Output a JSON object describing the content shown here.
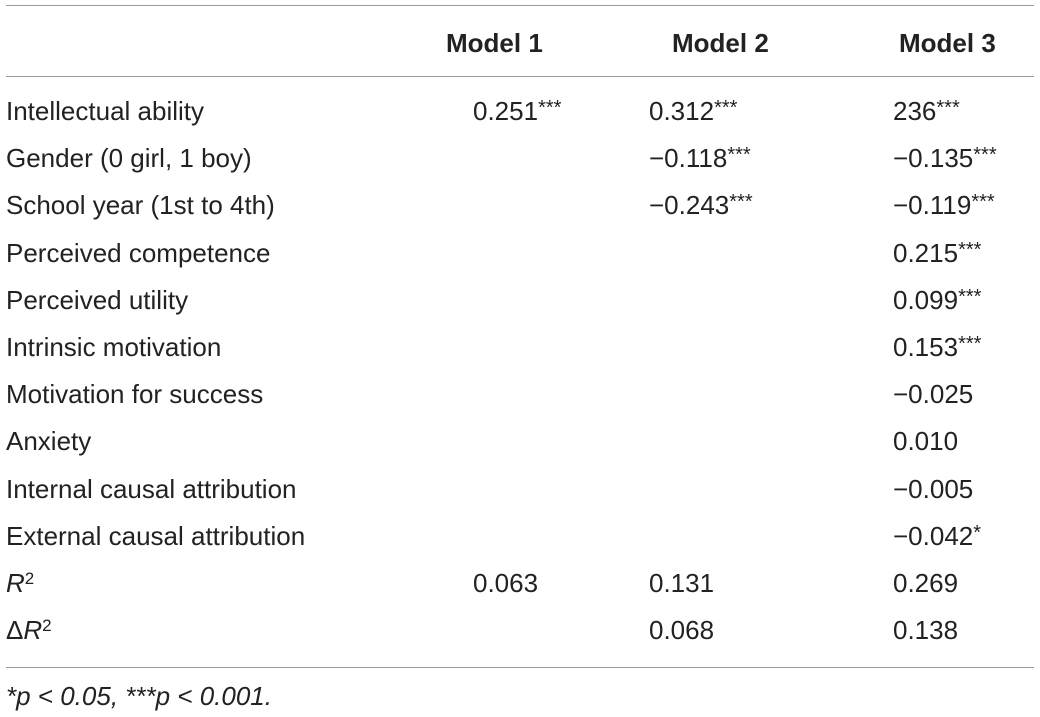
{
  "table": {
    "headers": [
      "",
      "Model 1",
      "Model 2",
      "Model 3"
    ],
    "rows": [
      {
        "label": "Intellectual ability",
        "m1": "0.251***",
        "m2": "0.312***",
        "m3": "236***"
      },
      {
        "label": "Gender (0 girl, 1 boy)",
        "m1": "",
        "m2": "−0.118***",
        "m3": "−0.135***"
      },
      {
        "label": "School year (1st to 4th)",
        "m1": "",
        "m2": "−0.243***",
        "m3": "−0.119***"
      },
      {
        "label": "Perceived competence",
        "m1": "",
        "m2": "",
        "m3": "0.215***"
      },
      {
        "label": "Perceived utility",
        "m1": "",
        "m2": "",
        "m3": "0.099***"
      },
      {
        "label": "Intrinsic motivation",
        "m1": "",
        "m2": "",
        "m3": "0.153***"
      },
      {
        "label": "Motivation for success",
        "m1": "",
        "m2": "",
        "m3": "−0.025"
      },
      {
        "label": "Anxiety",
        "m1": "",
        "m2": "",
        "m3": "0.010"
      },
      {
        "label": "Internal causal attribution",
        "m1": "",
        "m2": "",
        "m3": "−0.005"
      },
      {
        "label": "External causal attribution",
        "m1": "",
        "m2": "",
        "m3": "−0.042*"
      },
      {
        "label": "R2",
        "m1": "0.063",
        "m2": "0.131",
        "m3": "0.269"
      },
      {
        "label": "ΔR2",
        "m1": "",
        "m2": "0.068",
        "m3": "0.138"
      }
    ]
  },
  "footnote": "*p < 0.05, ***p < 0.001."
}
